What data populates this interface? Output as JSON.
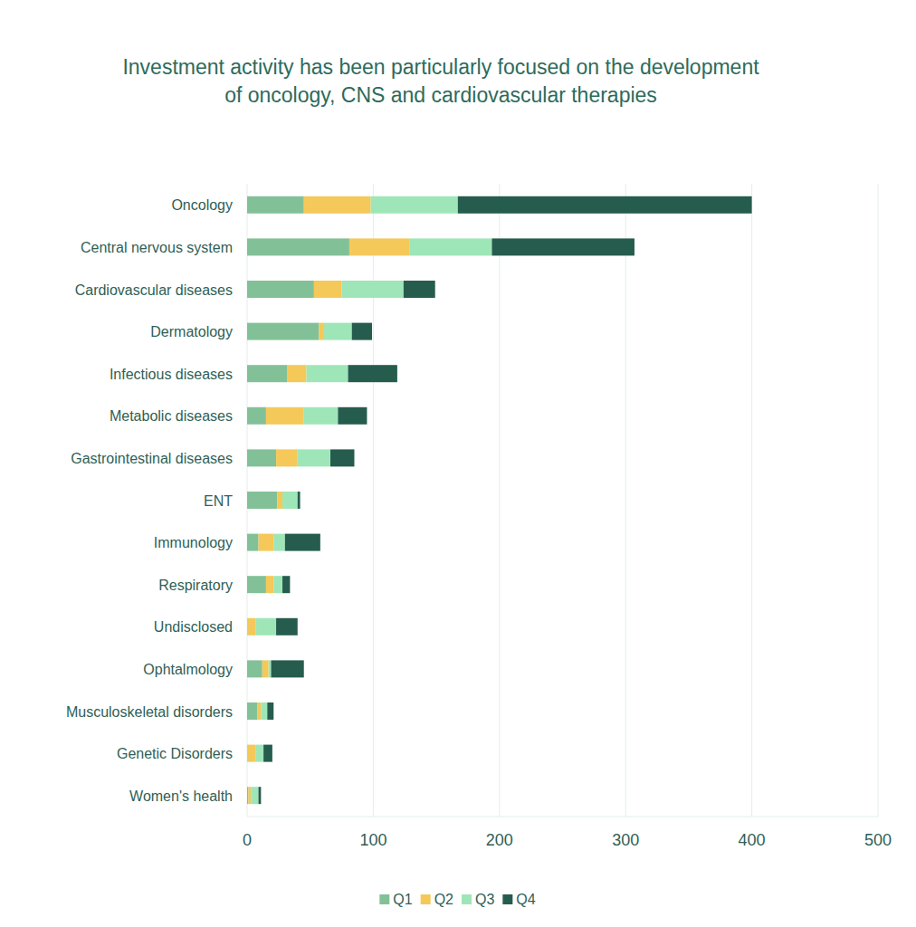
{
  "chart_data": {
    "type": "bar",
    "orientation": "horizontal",
    "stacked": true,
    "title": "Investment activity has been particularly focused on the development of oncology, CNS and cardiovascular therapies",
    "categories": [
      "Oncology",
      "Central nervous system",
      "Cardiovascular diseases",
      "Dermatology",
      "Infectious diseases",
      "Metabolic diseases",
      "Gastrointestinal diseases",
      "ENT",
      "Immunology",
      "Respiratory",
      "Undisclosed",
      "Ophtalmology",
      "Musculoskeletal disorders",
      "Genetic Disorders",
      "Women's health"
    ],
    "series": [
      {
        "name": "Q1",
        "color": "#82c197",
        "values": [
          45,
          81,
          53,
          57,
          32,
          15,
          23,
          24,
          9,
          15,
          0,
          12,
          8,
          0,
          1
        ]
      },
      {
        "name": "Q2",
        "color": "#f5c85a",
        "values": [
          53,
          48,
          22,
          4,
          15,
          30,
          17,
          4,
          12,
          6,
          7,
          5,
          3,
          7,
          2
        ]
      },
      {
        "name": "Q3",
        "color": "#9ee6b8",
        "values": [
          69,
          65,
          49,
          22,
          33,
          27,
          26,
          12,
          9,
          7,
          16,
          2,
          5,
          6,
          6
        ]
      },
      {
        "name": "Q4",
        "color": "#265c4e",
        "values": [
          233,
          113,
          25,
          16,
          39,
          23,
          19,
          2,
          28,
          6,
          17,
          26,
          5,
          7,
          2
        ]
      }
    ],
    "xlim": [
      0,
      500
    ],
    "xticks": [
      0,
      100,
      200,
      300,
      400,
      500
    ],
    "grid": true,
    "legend": "bottom"
  }
}
